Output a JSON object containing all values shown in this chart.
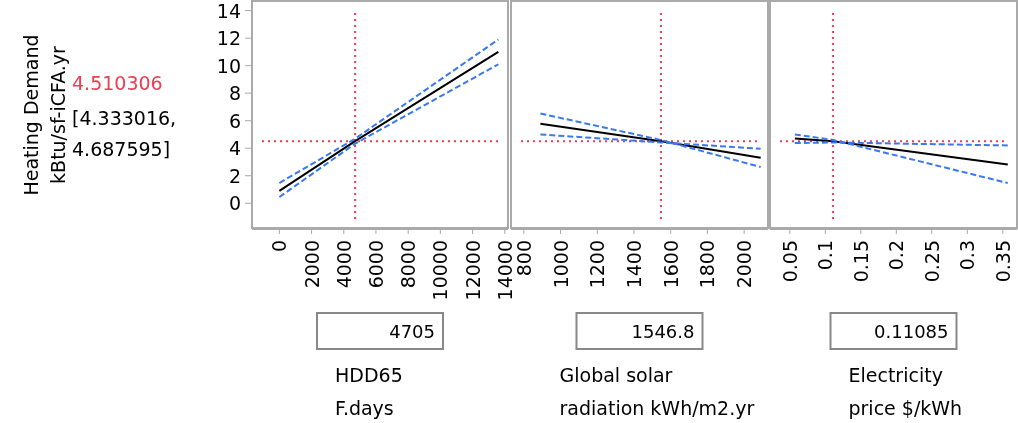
{
  "chart_data": [
    {
      "type": "line",
      "ylabel": "Heating Demand kBtu/sf-iCFA.yr",
      "xlabel": "HDD65 F.days",
      "annotations": [
        "4705",
        "[4.333016, 4.687595]"
      ],
      "xlim": [
        -1700,
        14200
      ],
      "xticks": [
        0,
        2000,
        4000,
        6000,
        8000,
        10000,
        12000,
        14000
      ],
      "ylim": [
        -1.8,
        14.7
      ],
      "yticks": [
        0,
        2,
        4,
        6,
        8,
        10,
        12,
        14
      ],
      "grid": false,
      "series": [
        {
          "color": "#000000",
          "line_style": "solid",
          "x": [
            0,
            4705,
            13600
          ],
          "values": [
            0.9,
            4.51,
            11.0
          ]
        },
        {
          "color": "#3a78f0",
          "line_style": "dashed",
          "x": [
            0,
            4705,
            13600
          ],
          "values": [
            1.47,
            4.69,
            11.9
          ]
        },
        {
          "color": "#3a78f0",
          "line_style": "dashed",
          "x": [
            0,
            4705,
            13600
          ],
          "values": [
            0.45,
            4.33,
            10.1
          ]
        }
      ],
      "ref_lines": [
        {
          "axis": "x",
          "value": 4705,
          "color": "#f03c50",
          "line_style": "dotted"
        },
        {
          "axis": "y",
          "value": 4.510306,
          "label": "4.510306",
          "color": "#f03c50",
          "line_style": "dotted"
        }
      ]
    },
    {
      "type": "line",
      "xlabel": "Global solar radiation kWh/m2.yr",
      "annotations": [
        "1546.8"
      ],
      "tick_labels": "x",
      "xlim": [
        730,
        2130
      ],
      "xticks": [
        800,
        1000,
        1200,
        1400,
        1600,
        1800,
        2000
      ],
      "ylim": [
        -1.8,
        14.7
      ],
      "grid": false,
      "series": [
        {
          "color": "#000000",
          "line_style": "solid",
          "x": [
            890,
            1546.8,
            2090
          ],
          "values": [
            5.77,
            4.51,
            3.3
          ]
        },
        {
          "color": "#3a78f0",
          "line_style": "dashed",
          "x": [
            890,
            1546.8,
            2090
          ],
          "values": [
            6.52,
            4.6,
            2.63
          ]
        },
        {
          "color": "#3a78f0",
          "line_style": "dashed",
          "x": [
            890,
            1546.8,
            2090
          ],
          "values": [
            5.0,
            4.42,
            3.96
          ]
        }
      ],
      "ref_lines": [
        {
          "axis": "x",
          "value": 1546.8,
          "color": "#f03c50",
          "line_style": "dotted"
        },
        {
          "axis": "y",
          "value": 4.510306,
          "color": "#f03c50",
          "line_style": "dotted"
        }
      ]
    },
    {
      "type": "line",
      "xlabel": "Electricity price $/kWh",
      "annotations": [
        "0.11085"
      ],
      "tick_labels": "x",
      "xlim": [
        0.022,
        0.37
      ],
      "xticks": [
        0.05,
        0.1,
        0.15,
        0.2,
        0.25,
        0.3,
        0.35
      ],
      "ylim": [
        -1.8,
        14.7
      ],
      "grid": false,
      "series": [
        {
          "color": "#000000",
          "line_style": "solid",
          "x": [
            0.057,
            0.11085,
            0.357
          ],
          "values": [
            4.7,
            4.51,
            2.82
          ]
        },
        {
          "color": "#3a78f0",
          "line_style": "dashed",
          "x": [
            0.057,
            0.11085,
            0.357
          ],
          "values": [
            5.0,
            4.6,
            1.47
          ]
        },
        {
          "color": "#3a78f0",
          "line_style": "dashed",
          "x": [
            0.057,
            0.11085,
            0.357
          ],
          "values": [
            4.37,
            4.42,
            4.2
          ]
        }
      ],
      "ref_lines": [
        {
          "axis": "x",
          "value": 0.11085,
          "color": "#f03c50",
          "line_style": "dotted"
        },
        {
          "axis": "y",
          "value": 4.510306,
          "color": "#f03c50",
          "line_style": "dotted"
        }
      ]
    }
  ]
}
